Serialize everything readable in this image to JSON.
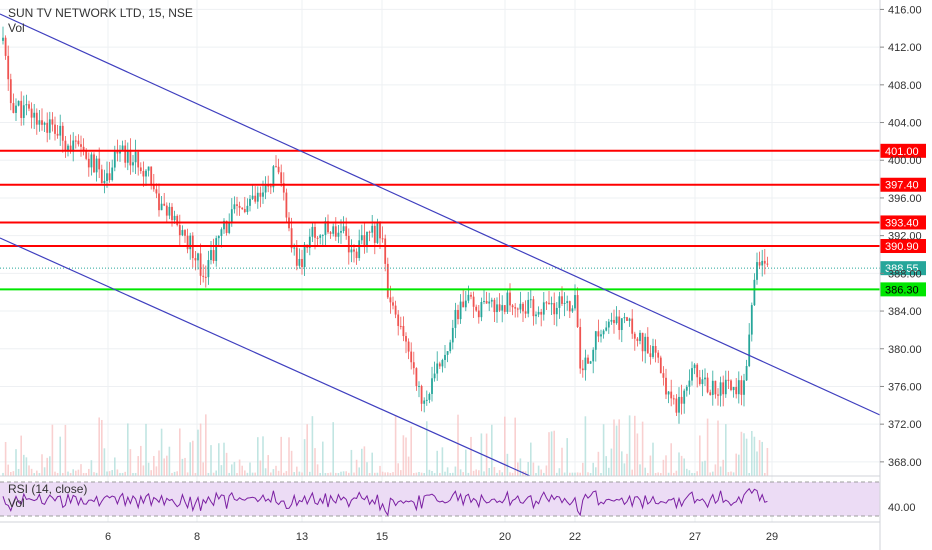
{
  "header": {
    "symbol_line": "SUN TV NETWORK LTD, 15, NSE",
    "volume_label": "Vol"
  },
  "rsi_panel": {
    "label": "RSI (14, close)",
    "volume_label": "Vol",
    "axis_label": "40.00",
    "value": 40
  },
  "colors": {
    "up": "#26a69a",
    "down": "#ef5350",
    "level_red": "#ff0000",
    "level_green": "#00e600",
    "channel": "#3f3fbf",
    "rsi": "#7b1fa2",
    "rsi_band": "#ecdcf5",
    "last_price": "#26a69a"
  },
  "chart_data": {
    "type": "candlestick",
    "x_ticks": [
      "6",
      "8",
      "13",
      "15",
      "20",
      "22",
      "27",
      "29"
    ],
    "y_ticks": [
      "368.00",
      "372.00",
      "376.00",
      "380.00",
      "384.00",
      "388.00",
      "392.00",
      "396.00",
      "400.00",
      "404.00",
      "408.00",
      "412.00",
      "416.00"
    ],
    "ylim": [
      366.5,
      417
    ],
    "horizontal_levels": [
      {
        "value": 401.0,
        "label": "401.00",
        "color": "red"
      },
      {
        "value": 397.4,
        "label": "397.40",
        "color": "red"
      },
      {
        "value": 393.4,
        "label": "393.40",
        "color": "red"
      },
      {
        "value": 390.9,
        "label": "390.90",
        "color": "red"
      },
      {
        "value": 386.3,
        "label": "386.30",
        "color": "green"
      }
    ],
    "last_price": {
      "value": 388.55,
      "label": "388.55"
    },
    "channel_lines": "descending parallel channel (two trendlines)",
    "anchors": [
      [
        "3",
        411
      ],
      [
        "3",
        406
      ],
      [
        "4",
        404
      ],
      [
        "5",
        401
      ],
      [
        "6",
        398
      ],
      [
        "6",
        401
      ],
      [
        "7",
        399
      ],
      [
        "7",
        396
      ],
      [
        "8",
        390
      ],
      [
        "8",
        388
      ],
      [
        "9",
        394
      ],
      [
        "10",
        396
      ],
      [
        "11",
        397
      ],
      [
        "11",
        399
      ],
      [
        "12",
        396
      ],
      [
        "12",
        390
      ],
      [
        "13",
        389
      ],
      [
        "13",
        392
      ],
      [
        "14",
        393
      ],
      [
        "14",
        390
      ],
      [
        "15",
        393
      ],
      [
        "15",
        385
      ],
      [
        "16",
        378
      ],
      [
        "16",
        374
      ],
      [
        "17",
        376
      ],
      [
        "18",
        385
      ],
      [
        "19",
        384
      ],
      [
        "20",
        385
      ],
      [
        "21",
        384
      ],
      [
        "22",
        385
      ],
      [
        "22",
        377
      ],
      [
        "23",
        382
      ],
      [
        "24",
        383
      ],
      [
        "25",
        379
      ],
      [
        "26",
        374
      ],
      [
        "26",
        375
      ],
      [
        "27",
        379
      ],
      [
        "27",
        376
      ],
      [
        "28",
        376
      ],
      [
        "28",
        383
      ],
      [
        "28",
        389
      ],
      [
        "29",
        388.55
      ]
    ]
  }
}
